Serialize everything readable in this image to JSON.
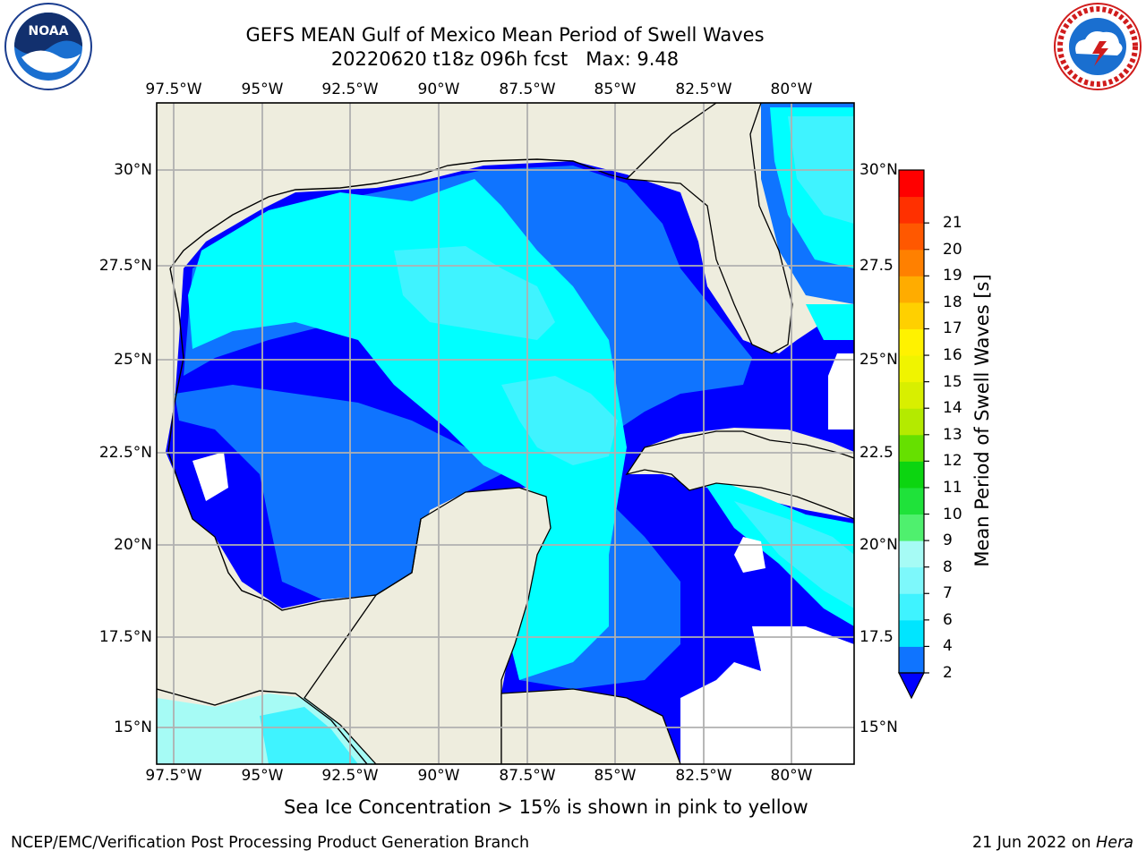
{
  "title": {
    "line1": "GEFS MEAN Gulf of Mexico Mean Period of Swell Waves",
    "line2": "20220620 t18z 096h fcst   Max: 9.48"
  },
  "logos": {
    "left": "noaa-logo",
    "right": "national-weather-service-logo",
    "left_text": "NATIONAL OCEANIC AND ATMOSPHERIC ADMINISTRATION · U.S. DEPARTMENT OF COMMERCE",
    "left_mark": "NOAA",
    "right_text": "NATIONAL WEATHER SERVICE"
  },
  "map": {
    "lon_labels": [
      "97.5°W",
      "95°W",
      "92.5°W",
      "90°W",
      "87.5°W",
      "85°W",
      "82.5°W",
      "80°W"
    ],
    "lat_labels_left": [
      "30°N",
      "27.5°N",
      "25°N",
      "22.5°N",
      "20°N",
      "17.5°N",
      "15°N"
    ],
    "lat_labels_right": [
      "30°N",
      "27.5",
      "25°N",
      "22.5",
      "20°N",
      "17.5",
      "15°N"
    ],
    "land_color": "#eeedde",
    "grid": true
  },
  "colorbar": {
    "label": "Mean Period of Swell Waves [s]",
    "ticks": [
      "2",
      "4",
      "6",
      "7",
      "8",
      "9",
      "10",
      "11",
      "12",
      "13",
      "14",
      "15",
      "16",
      "17",
      "18",
      "19",
      "20",
      "21"
    ],
    "colors": [
      "#0f74ff",
      "#00e5ff",
      "#3ff3ff",
      "#7df8fb",
      "#a6fbf5",
      "#4ff06e",
      "#1fe23a",
      "#0cd510",
      "#66e000",
      "#b4ea00",
      "#d8ef00",
      "#f0f400",
      "#fff200",
      "#ffd000",
      "#ffac00",
      "#ff8000",
      "#ff5800",
      "#ff3000",
      "#ff0000"
    ],
    "extend_color": "#0000ff"
  },
  "note": "Sea Ice Concentration > 15% is shown in pink to yellow",
  "footer": {
    "left": "NCEP/EMC/Verification Post Processing Product Generation Branch",
    "date": "21 Jun 2022 on ",
    "host": "Hera"
  }
}
